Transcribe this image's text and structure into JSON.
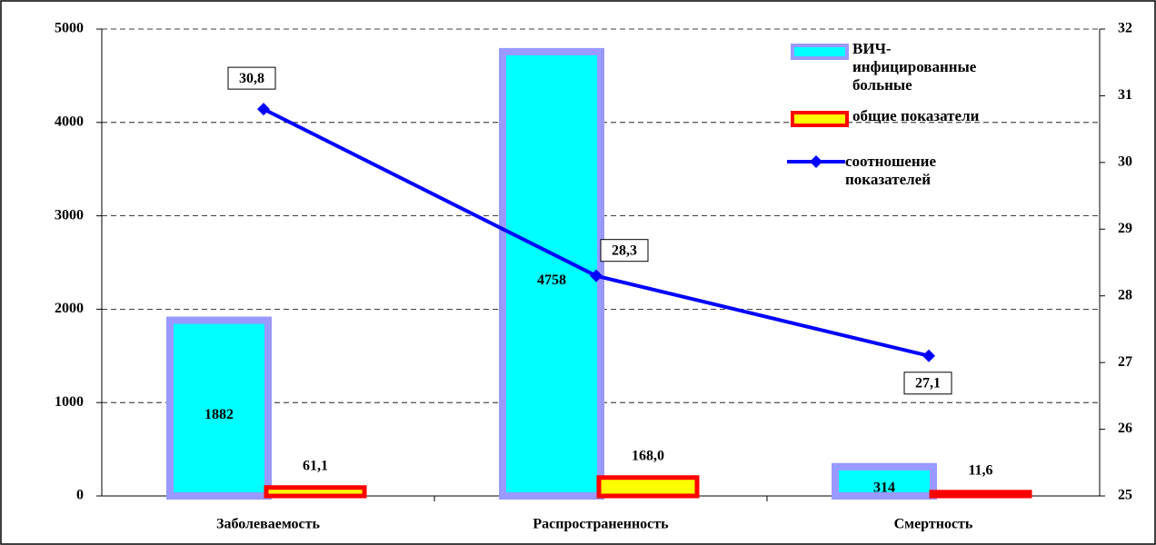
{
  "chart_data": {
    "type": "bar-line",
    "categories": [
      "Заболеваемость",
      "Распространенность",
      "Смертность"
    ],
    "series": [
      {
        "name": "ВИЧ-инфицированные больные",
        "type": "bar",
        "color": "#00ffff",
        "edge_color": "#9999ff",
        "values": [
          1882,
          4758,
          314
        ]
      },
      {
        "name": "общие показатели",
        "type": "bar",
        "color": "#ffff00",
        "edge_color": "#ff0000",
        "values": [
          61.1,
          168.0,
          11.6
        ],
        "value_labels": [
          "61,1",
          "168,0",
          "11,6"
        ]
      },
      {
        "name": "соотношение показателей",
        "type": "line",
        "axis": "y2",
        "color": "#0000ff",
        "values": [
          30.8,
          28.3,
          27.1
        ],
        "value_labels": [
          "30,8",
          "28,3",
          "27,1"
        ]
      }
    ],
    "ylim": [
      0,
      5000
    ],
    "yticks": [
      0,
      1000,
      2000,
      3000,
      4000,
      5000
    ],
    "y2lim": [
      25,
      32
    ],
    "y2ticks": [
      25,
      26,
      27,
      28,
      29,
      30,
      31,
      32
    ],
    "grid": true,
    "legend": "top-right"
  }
}
